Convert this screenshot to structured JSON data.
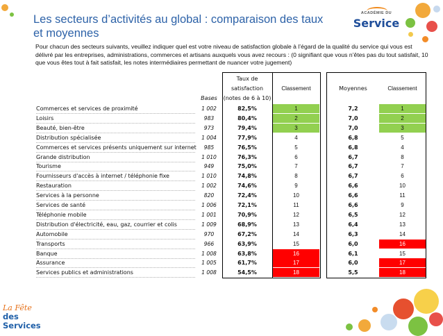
{
  "header": {
    "title": "Les secteurs d’activités au global : comparaison des taux et moyennes",
    "intro": "Pour chacun des secteurs suivants, veuillez indiquer quel est votre niveau de satisfaction globale à l’égard de la qualité du service qui vous est délivré par les entreprises, administrations, commerces et artisans auxquels vous avez recours : (0 signifiant que vous n’êtes pas du tout satisfait, 10 que vous êtes tout à fait satisfait, les notes intermédiaires permettant de nuancer votre jugement)"
  },
  "logo": {
    "top": "ACADÉMIE DU",
    "main": "Service"
  },
  "footer_logo": {
    "line1": "La Fête",
    "line2": "des Services"
  },
  "table": {
    "col_bases": "Bases",
    "col_rate_l1": "Taux de",
    "col_rate_l2": "satisfaction",
    "col_rate_l3": "(notes de 6 à 10)",
    "col_rank1": "Classement",
    "col_moy": "Moyennes",
    "col_rank2": "Classement",
    "colors": {
      "top": "#92d050",
      "bottom": "#ff0000"
    },
    "rows": [
      {
        "label": "Commerces et services de proximité",
        "base": "1 002",
        "rate": "82,5%",
        "rank1": "1",
        "moy": "7,2",
        "rank2": "1",
        "c1": "green",
        "c2": "green"
      },
      {
        "label": "Loisirs",
        "base": "983",
        "rate": "80,4%",
        "rank1": "2",
        "moy": "7,0",
        "rank2": "2",
        "c1": "green",
        "c2": "green"
      },
      {
        "label": "Beauté, bien-être",
        "base": "973",
        "rate": "79,4%",
        "rank1": "3",
        "moy": "7,0",
        "rank2": "3",
        "c1": "green",
        "c2": "green"
      },
      {
        "label": "Distribution spécialisée",
        "base": "1 004",
        "rate": "77,9%",
        "rank1": "4",
        "moy": "6,8",
        "rank2": "5",
        "c1": "",
        "c2": ""
      },
      {
        "label": "Commerces et services présents uniquement sur internet",
        "base": "985",
        "rate": "76,5%",
        "rank1": "5",
        "moy": "6,8",
        "rank2": "4",
        "c1": "",
        "c2": ""
      },
      {
        "label": "Grande distribution",
        "base": "1 010",
        "rate": "76,3%",
        "rank1": "6",
        "moy": "6,7",
        "rank2": "8",
        "c1": "",
        "c2": ""
      },
      {
        "label": "Tourisme",
        "base": "949",
        "rate": "75,0%",
        "rank1": "7",
        "moy": "6,7",
        "rank2": "7",
        "c1": "",
        "c2": ""
      },
      {
        "label": "Fournisseurs d'accès à internet / téléphonie fixe",
        "base": "1 010",
        "rate": "74,8%",
        "rank1": "8",
        "moy": "6,7",
        "rank2": "6",
        "c1": "",
        "c2": ""
      },
      {
        "label": "Restauration",
        "base": "1 002",
        "rate": "74,6%",
        "rank1": "9",
        "moy": "6,6",
        "rank2": "10",
        "c1": "",
        "c2": ""
      },
      {
        "label": "Services à la personne",
        "base": "820",
        "rate": "72,4%",
        "rank1": "10",
        "moy": "6,6",
        "rank2": "11",
        "c1": "",
        "c2": ""
      },
      {
        "label": "Services de santé",
        "base": "1 006",
        "rate": "72,1%",
        "rank1": "11",
        "moy": "6,6",
        "rank2": "9",
        "c1": "",
        "c2": ""
      },
      {
        "label": "Téléphonie mobile",
        "base": "1 001",
        "rate": "70,9%",
        "rank1": "12",
        "moy": "6,5",
        "rank2": "12",
        "c1": "",
        "c2": ""
      },
      {
        "label": "Distribution d'électricité, eau, gaz, courrier et colis",
        "base": "1 009",
        "rate": "68,9%",
        "rank1": "13",
        "moy": "6,4",
        "rank2": "13",
        "c1": "",
        "c2": ""
      },
      {
        "label": "Automobile",
        "base": "970",
        "rate": "67,2%",
        "rank1": "14",
        "moy": "6,3",
        "rank2": "14",
        "c1": "",
        "c2": ""
      },
      {
        "label": "Transports",
        "base": "966",
        "rate": "63,9%",
        "rank1": "15",
        "moy": "6,0",
        "rank2": "16",
        "c1": "",
        "c2": "red"
      },
      {
        "label": "Banque",
        "base": "1 008",
        "rate": "63,8%",
        "rank1": "16",
        "moy": "6,1",
        "rank2": "15",
        "c1": "red",
        "c2": ""
      },
      {
        "label": "Assurance",
        "base": "1 005",
        "rate": "61,7%",
        "rank1": "17",
        "moy": "6,0",
        "rank2": "17",
        "c1": "red",
        "c2": "red"
      },
      {
        "label": "Services publics et administrations",
        "base": "1 008",
        "rate": "54,5%",
        "rank1": "18",
        "moy": "5,5",
        "rank2": "18",
        "c1": "red",
        "c2": "red"
      }
    ]
  }
}
